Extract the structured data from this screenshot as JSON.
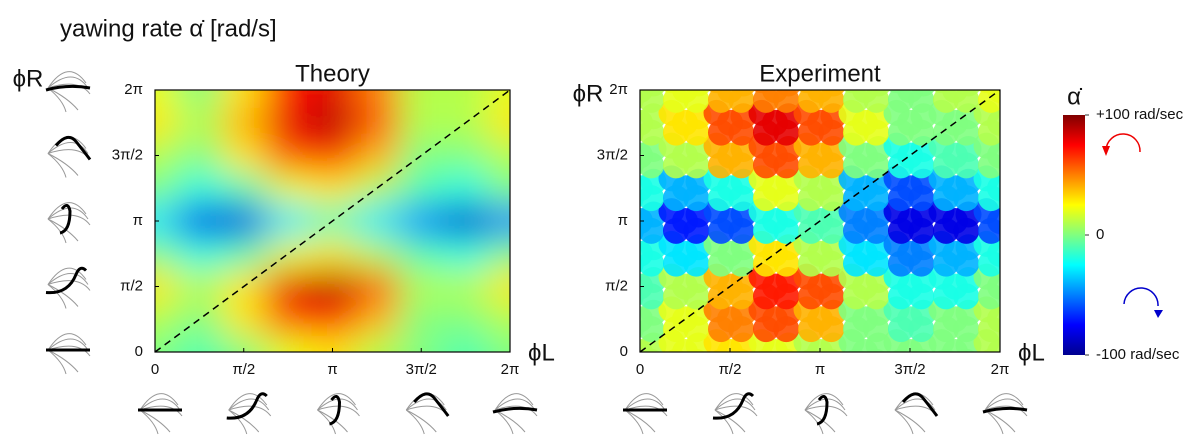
{
  "title": "yawing rate α̇ [rad/s]",
  "colorbar": {
    "label": "α̇",
    "zlim": [
      -100,
      100
    ],
    "ticks": [
      {
        "value": 100,
        "label": "+100 rad/sec"
      },
      0,
      {
        "value": -100,
        "label": "-100 rad/sec"
      }
    ]
  },
  "chart_data": [
    {
      "type": "heatmap",
      "title": "Theory",
      "x_label": "ϕL",
      "y_label": "ϕR",
      "x": [
        0,
        0.7854,
        1.5708,
        2.3562,
        3.1416,
        3.927,
        4.7124,
        5.4978,
        6.2832
      ],
      "y": [
        0,
        0.7854,
        1.5708,
        2.3562,
        3.1416,
        3.927,
        4.7124,
        5.4978,
        6.2832
      ],
      "z": [
        [
          0,
          -10,
          0,
          20,
          30,
          10,
          0,
          -10,
          0
        ],
        [
          10,
          0,
          30,
          60,
          70,
          40,
          0,
          0,
          10
        ],
        [
          30,
          10,
          30,
          80,
          90,
          60,
          10,
          10,
          30
        ],
        [
          0,
          -20,
          -10,
          20,
          30,
          10,
          -10,
          -20,
          0
        ],
        [
          -30,
          -80,
          -80,
          -30,
          -10,
          -30,
          -50,
          -85,
          -50
        ],
        [
          0,
          -20,
          -10,
          20,
          30,
          10,
          -10,
          -20,
          0
        ],
        [
          10,
          0,
          30,
          60,
          70,
          40,
          0,
          0,
          10
        ],
        [
          30,
          10,
          40,
          80,
          90,
          60,
          10,
          10,
          30
        ],
        [
          20,
          0,
          30,
          70,
          80,
          50,
          10,
          10,
          20
        ]
      ],
      "xlim": [
        0,
        6.2832
      ],
      "ylim": [
        0,
        6.2832
      ],
      "xticks": [
        0,
        {
          "value": 1.5708,
          "label": "π/2"
        },
        {
          "value": 3.1416,
          "label": "π"
        },
        {
          "value": 4.7124,
          "label": "3π/2"
        },
        {
          "value": 6.2832,
          "label": "2π"
        }
      ],
      "yticks": [
        0,
        {
          "value": 1.5708,
          "label": "π/2"
        },
        {
          "value": 3.1416,
          "label": "π"
        },
        {
          "value": 4.7124,
          "label": "3π/2"
        },
        {
          "value": 6.2832,
          "label": "2π"
        }
      ]
    },
    {
      "type": "scatter-heatmap",
      "title": "Experiment",
      "x_label": "ϕL",
      "y_label": "ϕR",
      "x": [
        0,
        0.7854,
        1.5708,
        2.3562,
        3.1416,
        3.927,
        4.7124,
        5.4978,
        6.2832
      ],
      "y": [
        0,
        0.7854,
        1.5708,
        2.3562,
        3.1416,
        3.927,
        4.7124,
        5.4978,
        6.2832
      ],
      "z": [
        [
          10,
          20,
          30,
          20,
          10,
          0,
          0,
          0,
          10
        ],
        [
          0,
          20,
          50,
          60,
          40,
          0,
          -10,
          0,
          10
        ],
        [
          -10,
          10,
          40,
          70,
          60,
          10,
          -20,
          -20,
          0
        ],
        [
          -20,
          -30,
          0,
          30,
          10,
          -30,
          -50,
          -40,
          -20
        ],
        [
          -40,
          -70,
          -60,
          -20,
          -10,
          -50,
          -80,
          -80,
          -60
        ],
        [
          -20,
          -40,
          -20,
          20,
          10,
          -40,
          -60,
          -40,
          -20
        ],
        [
          0,
          10,
          40,
          60,
          40,
          0,
          -20,
          -10,
          0
        ],
        [
          10,
          30,
          60,
          80,
          60,
          20,
          0,
          0,
          10
        ],
        [
          10,
          20,
          40,
          50,
          40,
          10,
          0,
          10,
          20
        ]
      ],
      "xlim": [
        0,
        6.2832
      ],
      "ylim": [
        0,
        6.2832
      ],
      "xticks": [
        0,
        {
          "value": 1.5708,
          "label": "π/2"
        },
        {
          "value": 3.1416,
          "label": "π"
        },
        {
          "value": 4.7124,
          "label": "3π/2"
        },
        {
          "value": 6.2832,
          "label": "2π"
        }
      ],
      "yticks": [
        0,
        {
          "value": 1.5708,
          "label": "π/2"
        },
        {
          "value": 3.1416,
          "label": "π"
        },
        {
          "value": 4.7124,
          "label": "3π/2"
        },
        {
          "value": 6.2832,
          "label": "2π"
        }
      ]
    }
  ]
}
